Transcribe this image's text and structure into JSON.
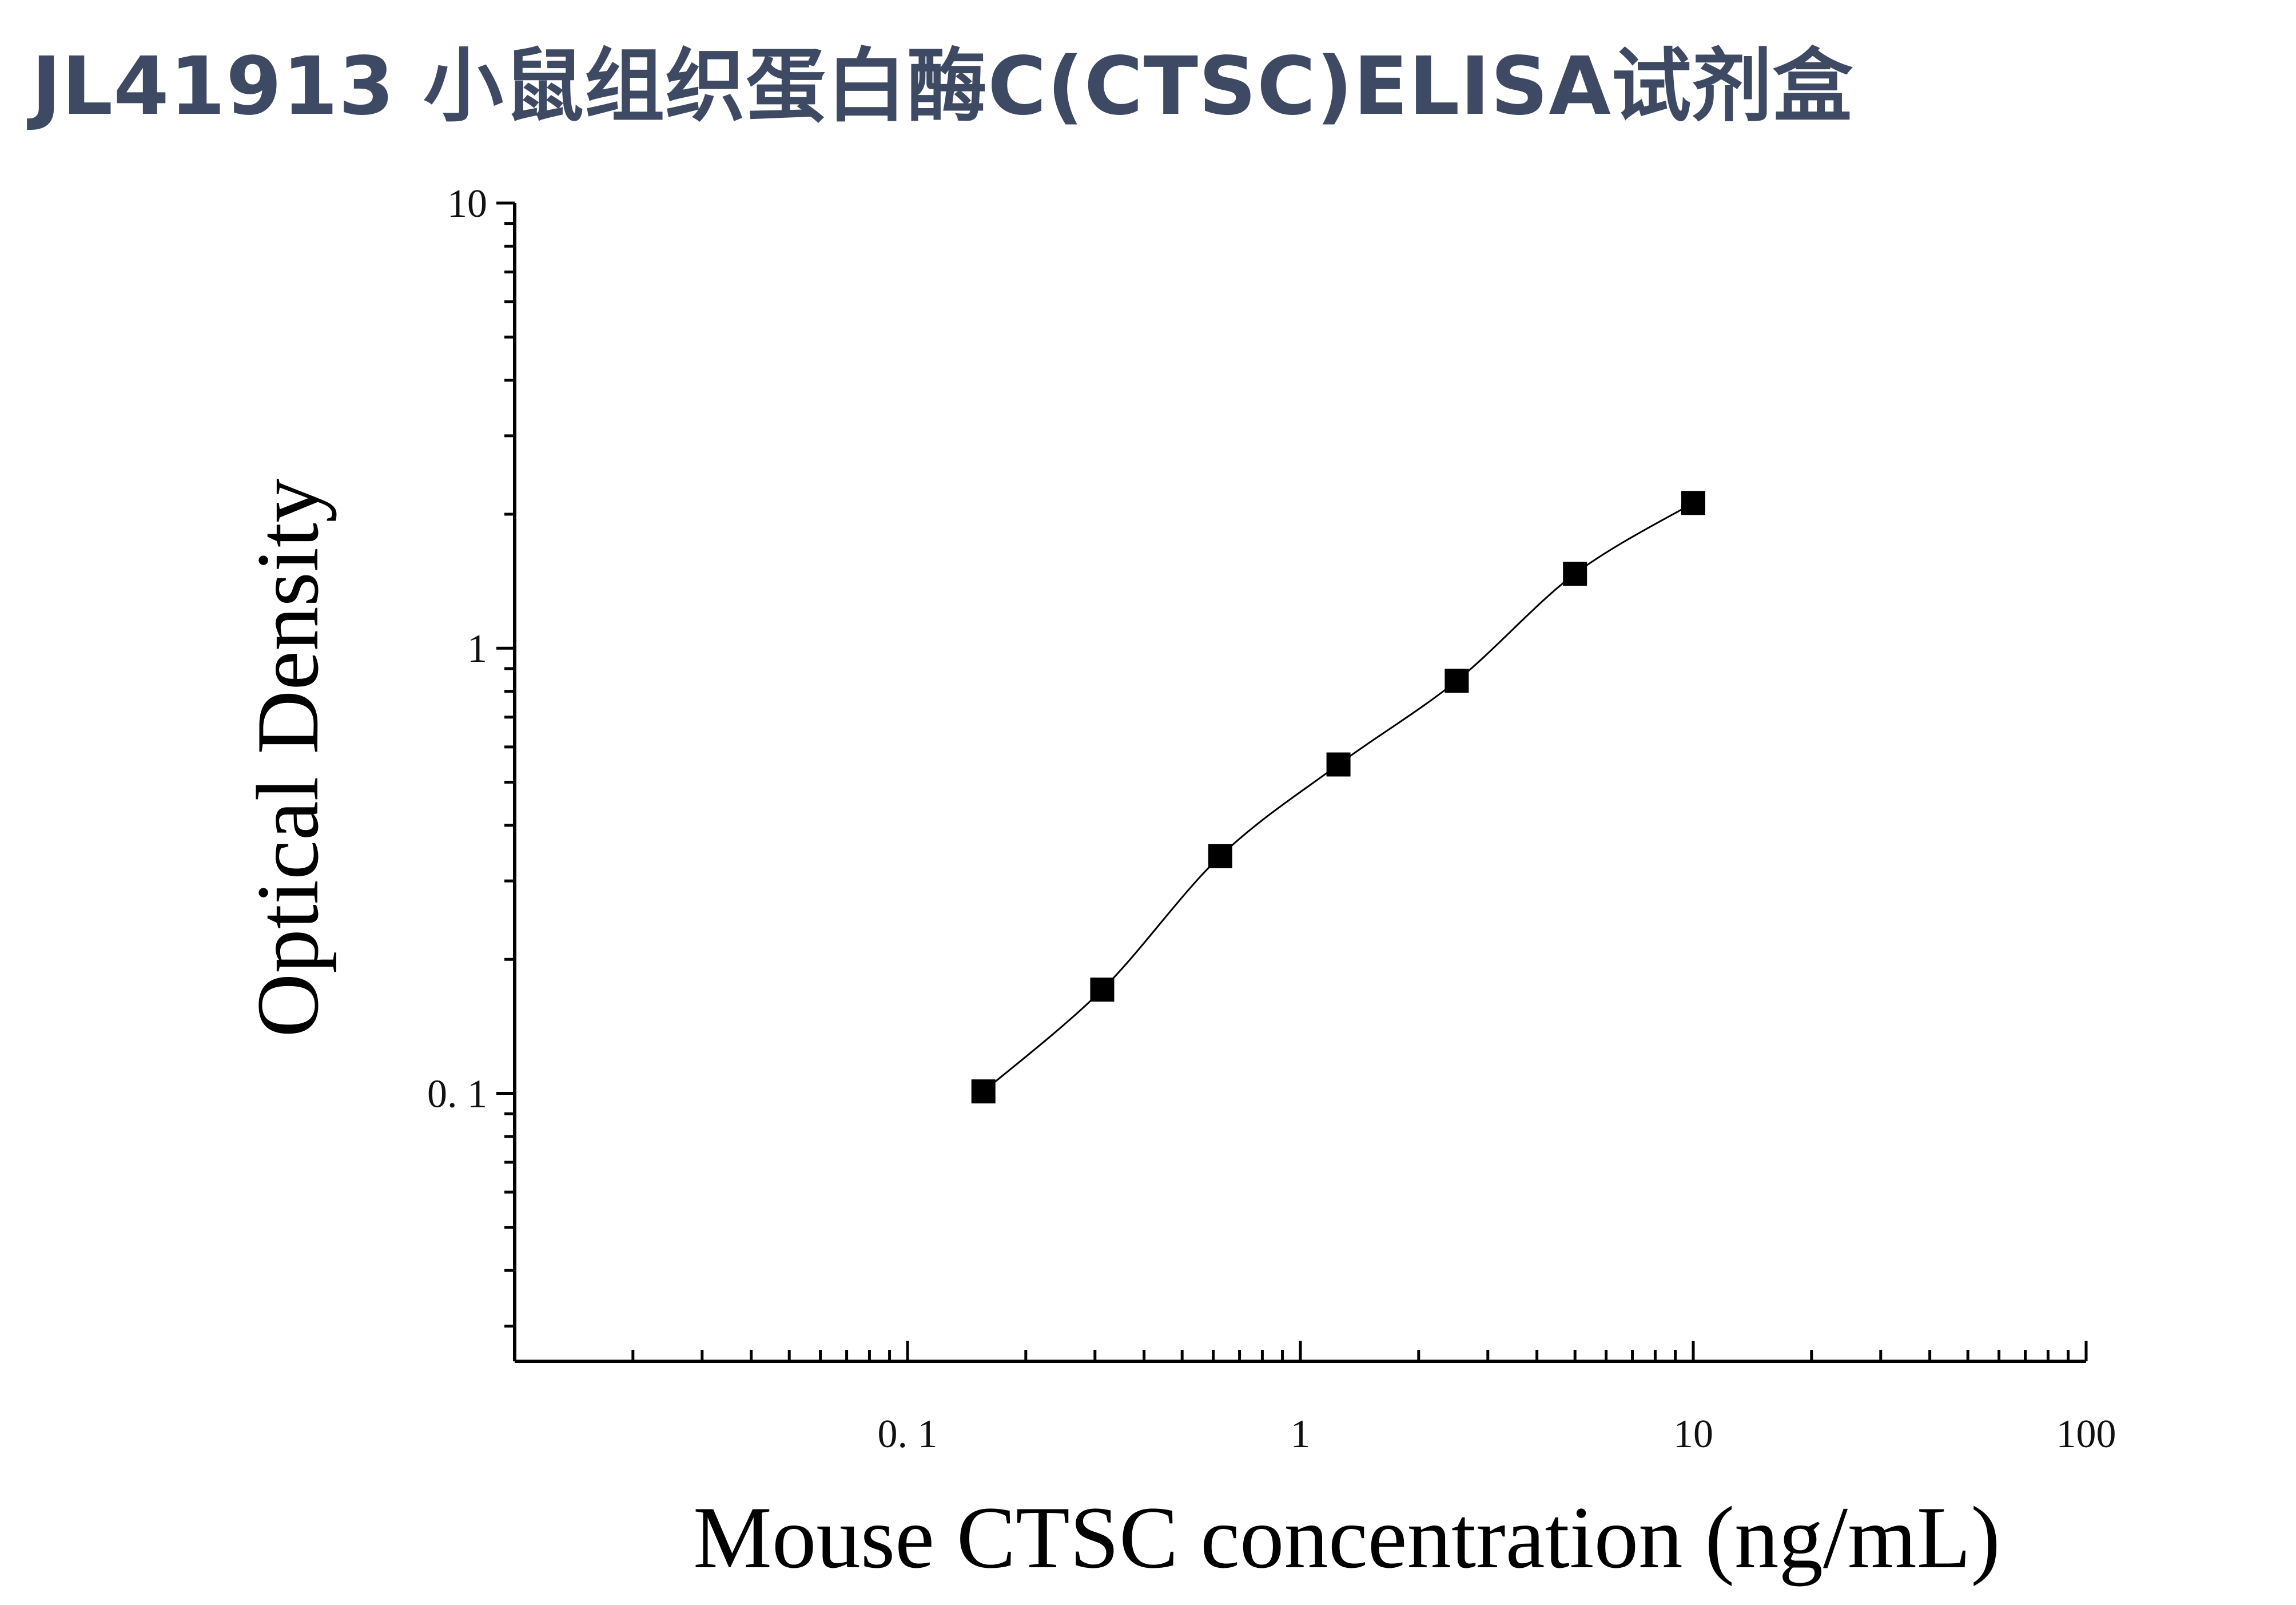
{
  "title": "JL41913 小鼠组织蛋白酶C(CTSC)ELISA试剂盒",
  "chart_data": {
    "type": "scatter",
    "xlabel": "Mouse CTSC concentration (ng/mL)",
    "ylabel": "Optical Density",
    "xscale": "log",
    "yscale": "log",
    "xlim": [
      0.01,
      100
    ],
    "ylim": [
      0.025,
      10
    ],
    "xticks": [
      {
        "value": 0.1,
        "label": "0. 1"
      },
      {
        "value": 1,
        "label": "1"
      },
      {
        "value": 10,
        "label": "10"
      },
      {
        "value": 100,
        "label": "100"
      }
    ],
    "yticks": [
      {
        "value": 0.1,
        "label": "0. 1"
      },
      {
        "value": 1,
        "label": "1"
      },
      {
        "value": 10,
        "label": "10"
      }
    ],
    "series": [
      {
        "x": [
          0.156,
          0.313,
          0.625,
          1.25,
          2.5,
          5,
          10
        ],
        "y": [
          0.101,
          0.171,
          0.341,
          0.548,
          0.845,
          1.47,
          2.12
        ],
        "marker": "square",
        "fit_line": true
      }
    ],
    "grid": false,
    "legend": "none",
    "colors": {
      "points": "#000000",
      "line": "#000000",
      "title": "#3e4a63"
    }
  }
}
